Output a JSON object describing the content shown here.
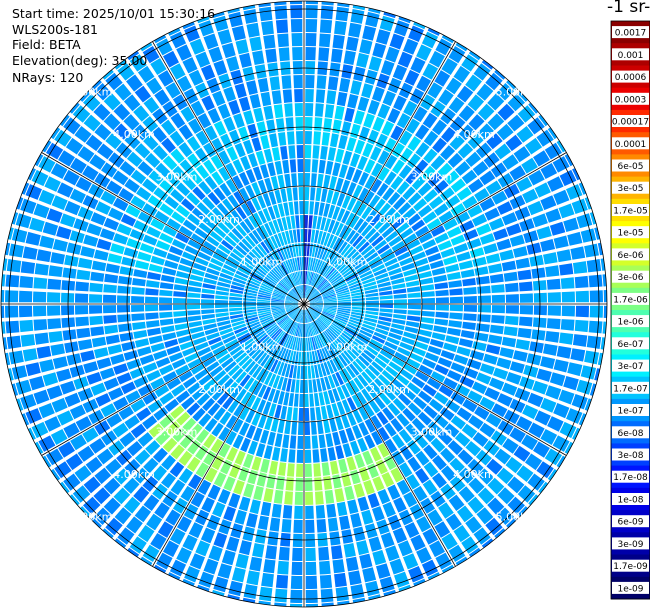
{
  "header": {
    "start_time": "Start time: 2025/10/01 15:30:16",
    "instrument": "WLS200s-181",
    "field": "Field: BETA",
    "elevation": "Elevation(deg): 35.00",
    "nrays": "NRays: 120"
  },
  "colorbar": {
    "title_fragment": "-1 sr-",
    "labels": [
      "0.0017",
      "0.001",
      "0.0006",
      "0.0003",
      "0.00017",
      "0.0001",
      "6e-05",
      "3e-05",
      "1.7e-05",
      "1e-05",
      "6e-06",
      "3e-06",
      "1.7e-06",
      "1e-06",
      "6e-07",
      "3e-07",
      "1.7e-07",
      "1e-07",
      "6e-08",
      "3e-08",
      "1.7e-08",
      "1e-08",
      "6e-09",
      "3e-09",
      "1.7e-09",
      "1e-09"
    ],
    "colors": [
      "#8b0000",
      "#ad0000",
      "#cc0000",
      "#ec0000",
      "#ff2a00",
      "#ff5a00",
      "#ff8a00",
      "#ffb400",
      "#ffde00",
      "#ffff00",
      "#d4ff2a",
      "#a8ff58",
      "#7cff84",
      "#4effb0",
      "#22ffdc",
      "#00f0ff",
      "#00c4ff",
      "#0098ff",
      "#006cff",
      "#0040ff",
      "#0014ff",
      "#0000e8",
      "#0000c8",
      "#0000a8",
      "#000088",
      "#000068"
    ]
  },
  "chart_data": {
    "type": "heatmap",
    "projection": "polar PPI",
    "rays": 120,
    "max_range_km": 5.5,
    "range_rings_km": [
      1,
      2,
      3,
      4,
      5
    ],
    "ring_labels": [
      "1.00km",
      "2.00km",
      "3.00km",
      "4.00km",
      "5.00km"
    ],
    "spoke_angles_deg": [
      0,
      30,
      60,
      90,
      120,
      150,
      180,
      210,
      240,
      270,
      300,
      330
    ],
    "dominant_value_range": [
      "1e-07",
      "6e-08"
    ],
    "enhanced_band": {
      "range_km": [
        2.8,
        3.3
      ],
      "azimuth_deg": [
        150,
        230
      ],
      "value": "1e-06"
    }
  }
}
